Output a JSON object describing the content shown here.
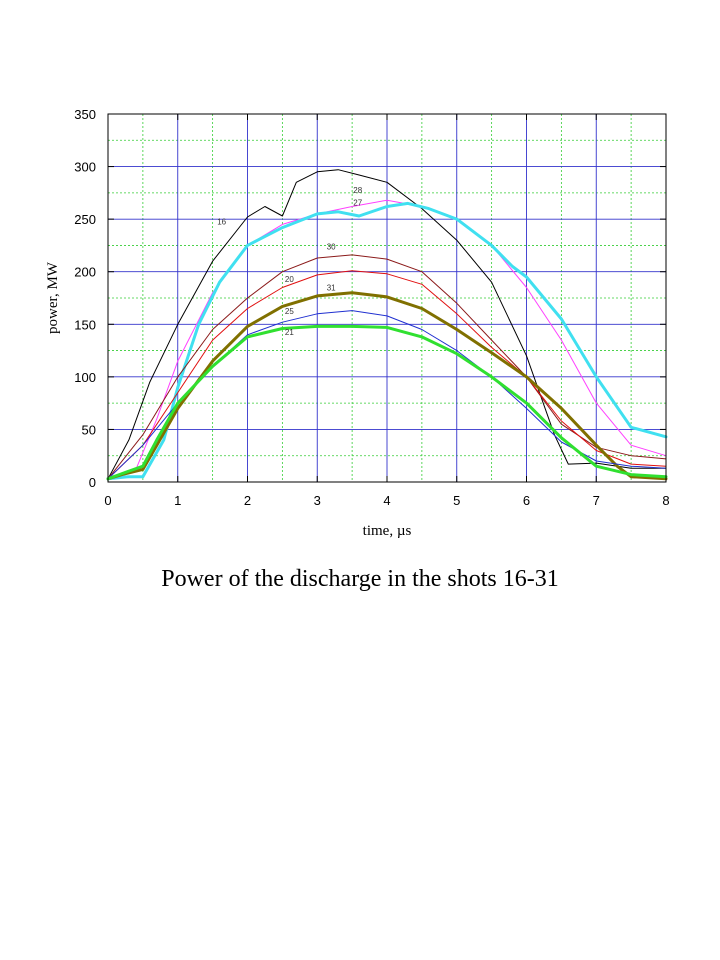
{
  "caption": "Power of the discharge in the shots 16-31",
  "chart_data": {
    "type": "line",
    "title": "",
    "xlabel": "time, µs",
    "ylabel": "power, MW",
    "xlim": [
      0,
      8
    ],
    "ylim": [
      0,
      350
    ],
    "xticks": [
      0,
      1,
      2,
      3,
      4,
      5,
      6,
      7,
      8
    ],
    "yticks": [
      0,
      50,
      100,
      150,
      200,
      250,
      300,
      350
    ],
    "grid": true,
    "legend": "none (curves labelled inline)",
    "series": [
      {
        "name": "16",
        "color": "#000000",
        "width": 1,
        "x": [
          0,
          0.3,
          0.6,
          1,
          1.5,
          2,
          2.25,
          2.5,
          2.7,
          3,
          3.3,
          3.6,
          4,
          4.5,
          5,
          5.5,
          6,
          6.4,
          6.6,
          7,
          7.5,
          8
        ],
        "y": [
          3,
          40,
          95,
          150,
          210,
          252,
          262,
          253,
          285,
          295,
          297,
          292,
          285,
          260,
          230,
          190,
          120,
          45,
          17,
          18,
          13,
          13
        ]
      },
      {
        "name": "28",
        "color": "#ff40ff",
        "width": 1,
        "x": [
          0,
          0.4,
          0.7,
          1,
          1.5,
          2,
          2.5,
          3,
          3.5,
          4,
          4.5,
          5,
          5.5,
          6,
          6.5,
          7,
          7.5,
          8
        ],
        "y": [
          3,
          12,
          60,
          115,
          180,
          225,
          245,
          255,
          262,
          268,
          262,
          250,
          225,
          185,
          135,
          75,
          35,
          25
        ]
      },
      {
        "name": "27",
        "color": "#40e0f0",
        "width": 3,
        "x": [
          0,
          0.3,
          0.5,
          0.8,
          1,
          1.3,
          1.6,
          2,
          2.5,
          3,
          3.3,
          3.6,
          4,
          4.3,
          4.6,
          5,
          5.5,
          5.8,
          6,
          6.5,
          7,
          7.5,
          8
        ],
        "y": [
          3,
          5,
          5,
          40,
          90,
          150,
          190,
          225,
          242,
          255,
          257,
          253,
          262,
          265,
          260,
          250,
          225,
          205,
          195,
          155,
          100,
          52,
          43
        ]
      },
      {
        "name": "30",
        "color": "#8b1a1a",
        "width": 1,
        "x": [
          0,
          0.5,
          1,
          1.5,
          2,
          2.5,
          3,
          3.5,
          4,
          4.5,
          5,
          5.5,
          6,
          6.5,
          7,
          7.5,
          8
        ],
        "y": [
          3,
          45,
          100,
          145,
          175,
          200,
          213,
          216,
          212,
          200,
          170,
          135,
          100,
          55,
          33,
          25,
          22
        ]
      },
      {
        "name": "20",
        "color": "#e01010",
        "width": 1,
        "x": [
          0,
          0.5,
          1,
          1.5,
          2,
          2.5,
          3,
          3.5,
          4,
          4.5,
          5,
          5.5,
          6,
          6.5,
          7,
          7.5,
          8
        ],
        "y": [
          3,
          35,
          85,
          135,
          165,
          185,
          197,
          201,
          198,
          188,
          160,
          128,
          100,
          58,
          30,
          17,
          15
        ]
      },
      {
        "name": "31",
        "color": "#807000",
        "width": 3,
        "x": [
          0,
          0.2,
          0.5,
          0.7,
          1,
          1.5,
          2,
          2.5,
          3,
          3.5,
          4,
          4.5,
          5,
          5.5,
          6,
          6.5,
          7,
          7.3,
          7.5,
          8
        ],
        "y": [
          3,
          7,
          12,
          35,
          70,
          115,
          148,
          167,
          177,
          180,
          176,
          165,
          145,
          123,
          100,
          70,
          35,
          15,
          5,
          3
        ]
      },
      {
        "name": "25",
        "color": "#2030d0",
        "width": 1,
        "x": [
          0,
          0.5,
          1,
          1.5,
          2,
          2.5,
          3,
          3.5,
          4,
          4.5,
          5,
          5.5,
          6,
          6.5,
          7,
          7.5,
          8
        ],
        "y": [
          3,
          35,
          75,
          110,
          140,
          152,
          160,
          163,
          158,
          145,
          125,
          100,
          70,
          38,
          20,
          15,
          13
        ]
      },
      {
        "name": "21",
        "color": "#30e030",
        "width": 3,
        "x": [
          0,
          0.2,
          0.5,
          0.7,
          1,
          1.5,
          2,
          2.5,
          3,
          3.5,
          4,
          4.5,
          5,
          5.5,
          6,
          6.5,
          7,
          7.5,
          8
        ],
        "y": [
          3,
          8,
          15,
          40,
          75,
          110,
          138,
          146,
          148,
          148,
          147,
          138,
          122,
          100,
          75,
          42,
          15,
          7,
          5
        ]
      }
    ],
    "curve_labels": [
      {
        "text": "16",
        "x": 1.63,
        "y": 245
      },
      {
        "text": "28",
        "x": 3.58,
        "y": 275
      },
      {
        "text": "27",
        "x": 3.58,
        "y": 263
      },
      {
        "text": "30",
        "x": 3.2,
        "y": 221
      },
      {
        "text": "20",
        "x": 2.6,
        "y": 190
      },
      {
        "text": "31",
        "x": 3.2,
        "y": 182
      },
      {
        "text": "25",
        "x": 2.6,
        "y": 160
      },
      {
        "text": "21",
        "x": 2.6,
        "y": 140
      }
    ]
  }
}
